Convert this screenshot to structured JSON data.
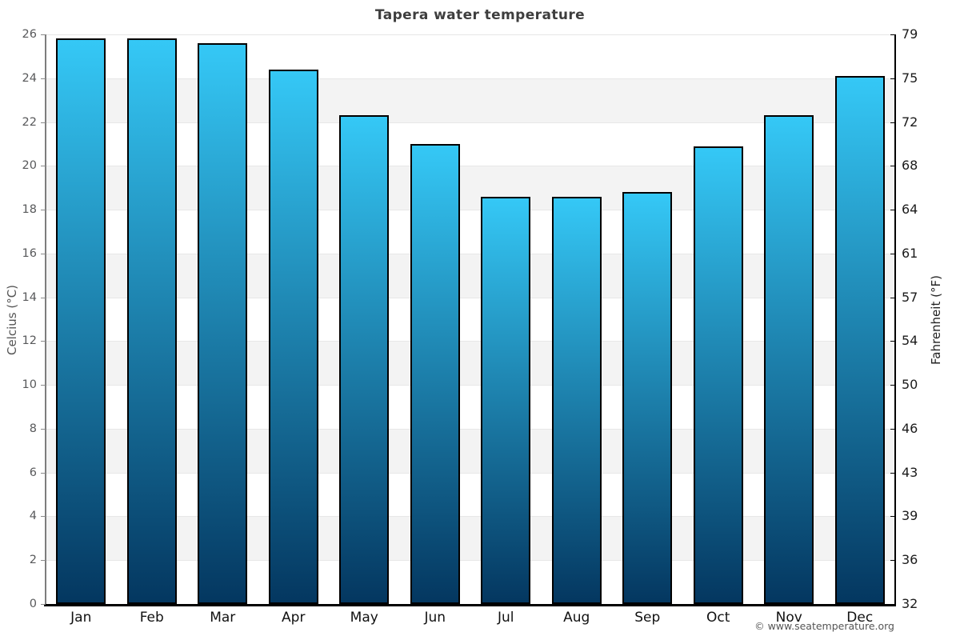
{
  "page": {
    "watermark": "© www.seatemperature.org"
  },
  "chart_data": {
    "type": "bar",
    "title": "Tapera water temperature",
    "categories": [
      "Jan",
      "Feb",
      "Mar",
      "Apr",
      "May",
      "Jun",
      "Jul",
      "Aug",
      "Sep",
      "Oct",
      "Nov",
      "Dec"
    ],
    "values": [
      25.8,
      25.8,
      25.6,
      24.4,
      22.3,
      21.0,
      18.6,
      18.6,
      18.8,
      20.9,
      22.3,
      24.1
    ],
    "values_unit": "°C",
    "ylabel_left": "Celcius (°C)",
    "ylabel_right": "Fahrenheit (°F)",
    "ylim": [
      0,
      26
    ],
    "ytick_step": 2,
    "yticks_celsius": [
      26,
      24,
      22,
      20,
      18,
      16,
      14,
      12,
      10,
      8,
      6,
      4,
      2,
      0
    ],
    "yticks_fahrenheit": [
      79,
      75,
      72,
      68,
      64,
      61,
      57,
      54,
      50,
      46,
      43,
      39,
      36,
      32
    ],
    "grid": "horizontal gridlines every 2°C",
    "banding": "alternating 2°C background bands",
    "legend": "none",
    "style": {
      "bar_gradient_top": "#35c8f6",
      "bar_gradient_bottom": "#043760",
      "bar_border": "#000000",
      "band_fill": "#f3f3f3",
      "gridline": "#e7e7e7",
      "title_color": "#3e3e3e",
      "left_tick_color": "#58595b",
      "right_tick_color": "#1b1b1b",
      "month_label_color": "#111111",
      "bottom_axis_color": "#000000",
      "watermark_color": "#555555"
    }
  }
}
